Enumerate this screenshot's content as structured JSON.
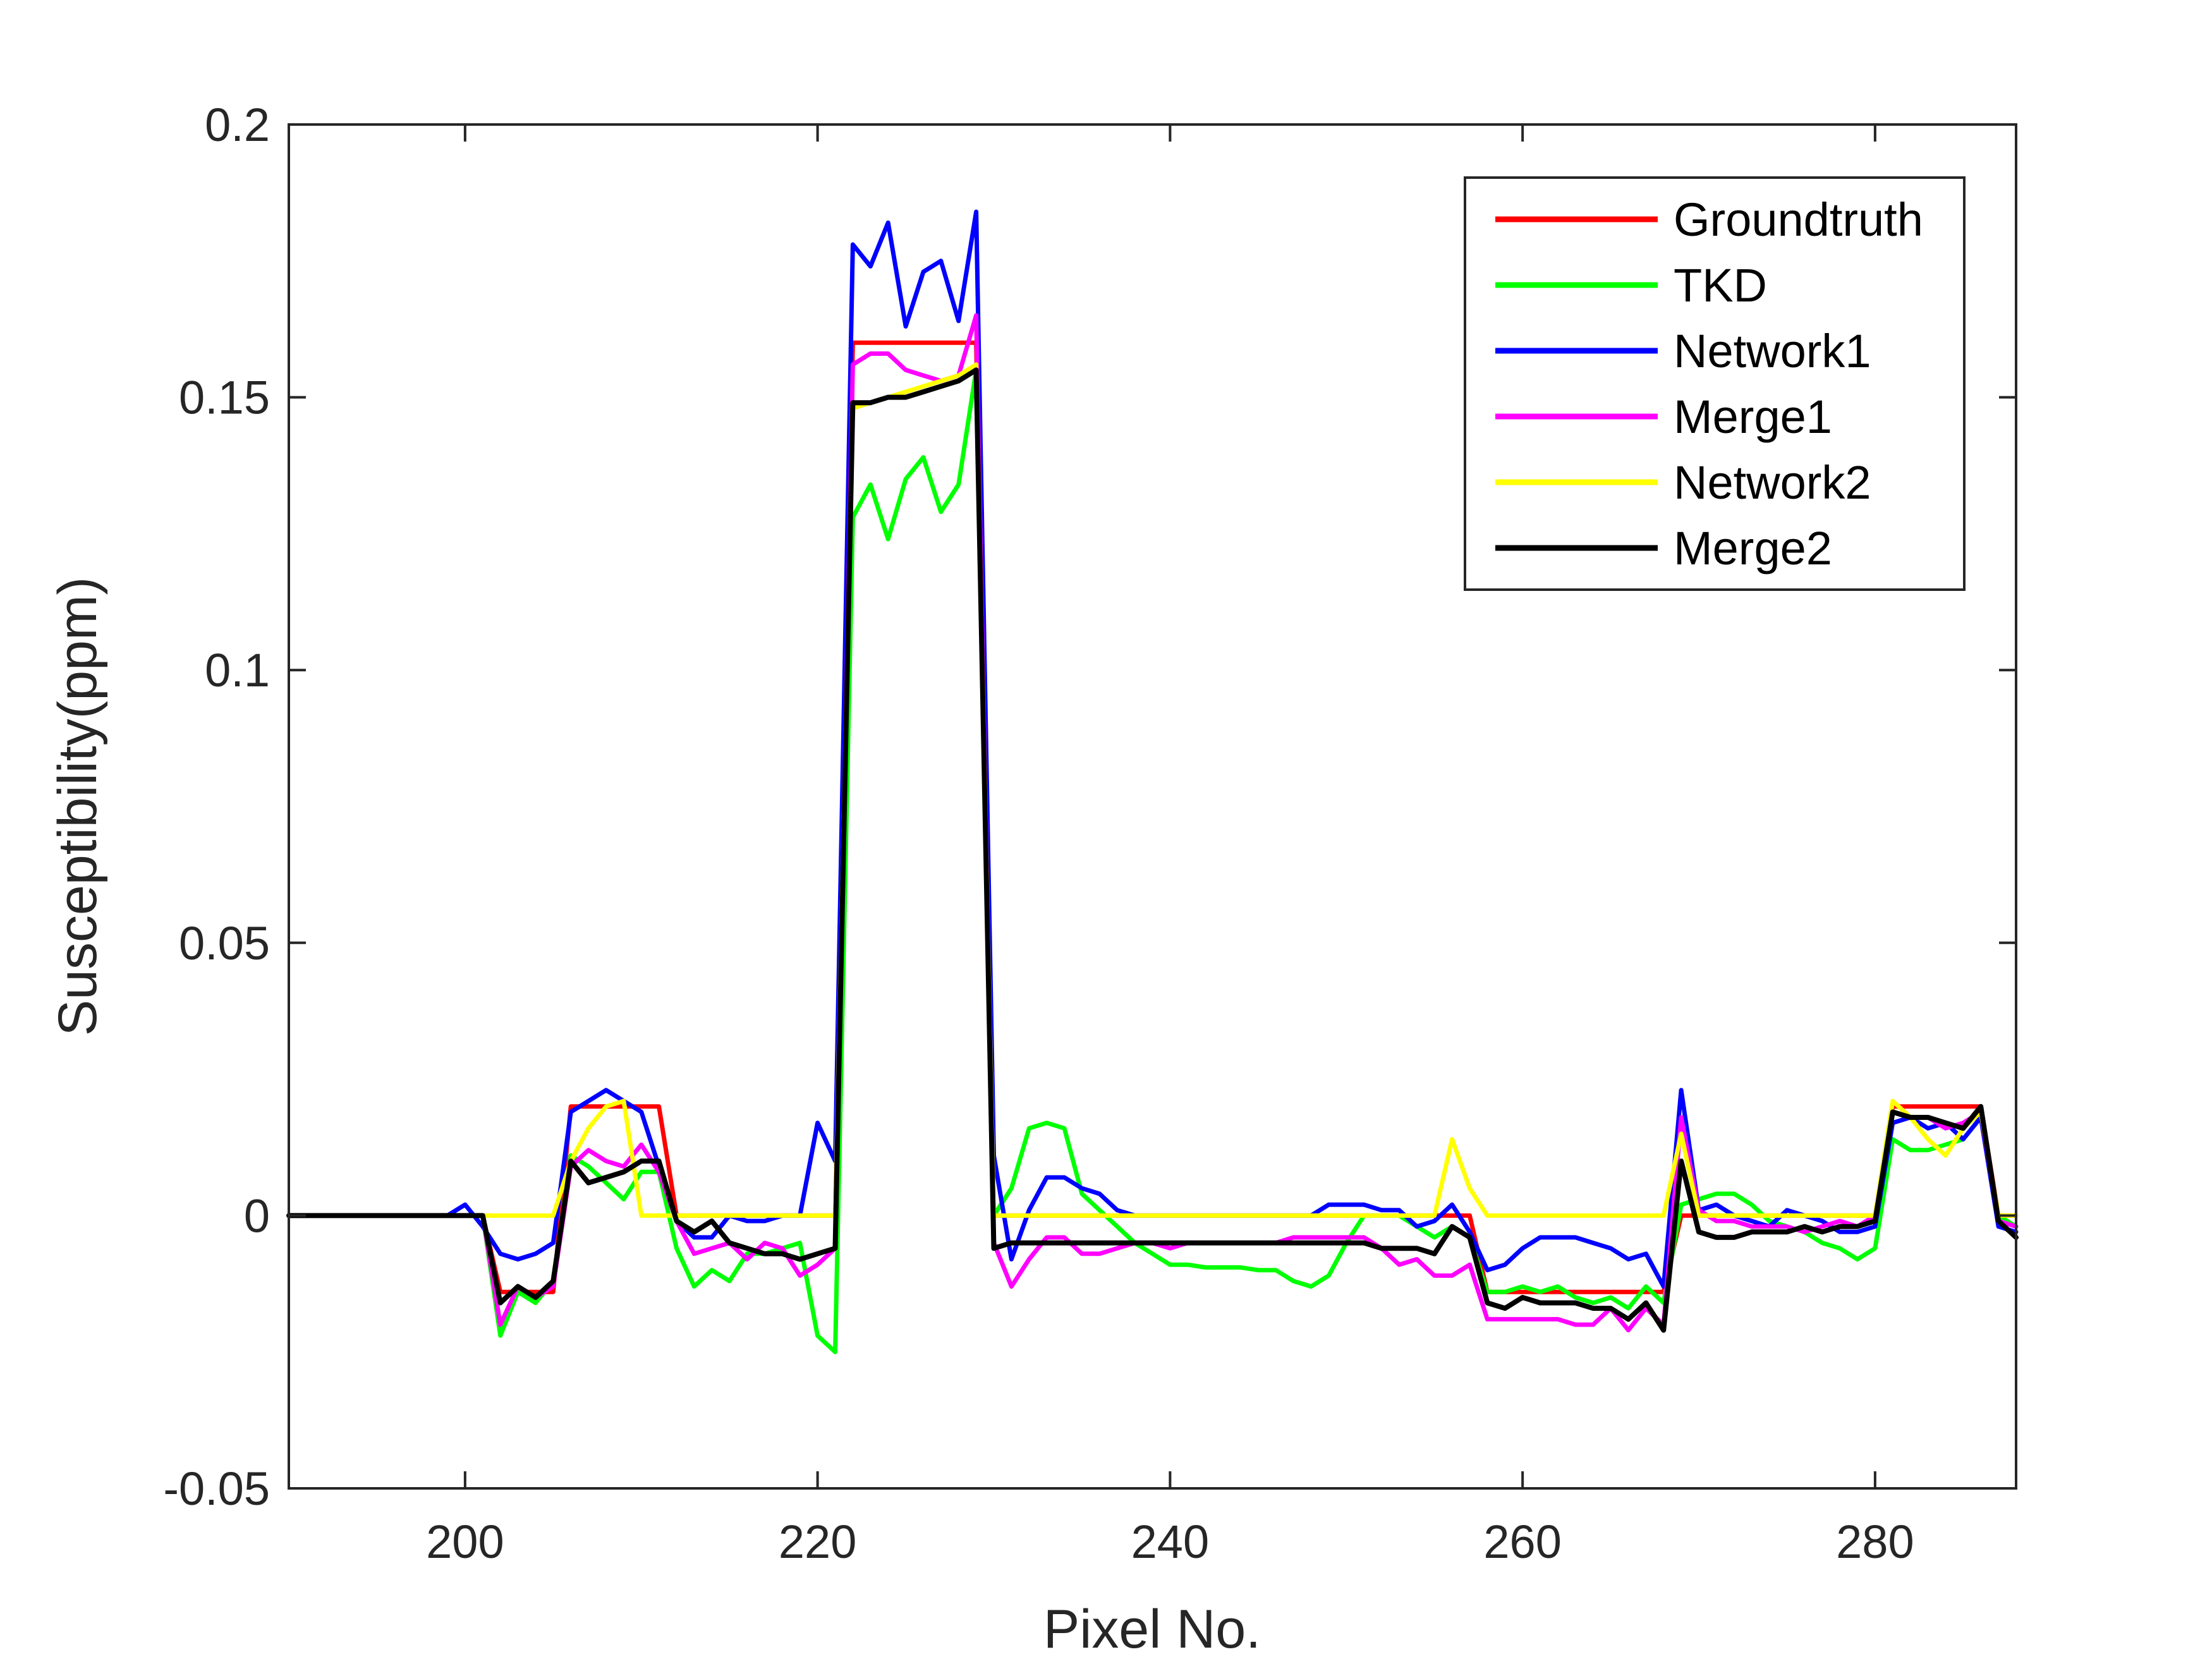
{
  "chart_data": {
    "type": "line",
    "title": "",
    "xlabel": "Pixel No.",
    "ylabel": "Susceptibility(ppm)",
    "xlim": [
      190,
      288
    ],
    "ylim": [
      -0.05,
      0.2
    ],
    "xticks": [
      200,
      220,
      240,
      260,
      280
    ],
    "xtick_labels": [
      "200",
      "220",
      "240",
      "260",
      "280"
    ],
    "yticks": [
      -0.05,
      0,
      0.05,
      0.1,
      0.15,
      0.2
    ],
    "ytick_labels": [
      "-0.05",
      "0",
      "0.05",
      "0.1",
      "0.15",
      "0.2"
    ],
    "grid": false,
    "box": true,
    "legend_position": "top-right",
    "x": [
      190,
      191,
      192,
      193,
      194,
      195,
      196,
      197,
      198,
      199,
      200,
      201,
      202,
      203,
      204,
      205,
      206,
      207,
      208,
      209,
      210,
      211,
      212,
      213,
      214,
      215,
      216,
      217,
      218,
      219,
      220,
      221,
      222,
      223,
      224,
      225,
      226,
      227,
      228,
      229,
      230,
      231,
      232,
      233,
      234,
      235,
      236,
      237,
      238,
      239,
      240,
      241,
      242,
      243,
      244,
      245,
      246,
      247,
      248,
      249,
      250,
      251,
      252,
      253,
      254,
      255,
      256,
      257,
      258,
      259,
      260,
      261,
      262,
      263,
      264,
      265,
      266,
      267,
      268,
      269,
      270,
      271,
      272,
      273,
      274,
      275,
      276,
      277,
      278,
      279,
      280,
      281,
      282,
      283,
      284,
      285,
      286,
      287,
      288
    ],
    "series": [
      {
        "name": "Groundtruth",
        "color": "#ff0000",
        "values": [
          0,
          0,
          0,
          0,
          0,
          0,
          0,
          0,
          0,
          0,
          0,
          0,
          -0.014,
          -0.014,
          -0.014,
          -0.014,
          0.02,
          0.02,
          0.02,
          0.02,
          0.02,
          0.02,
          0,
          0,
          0,
          0,
          0,
          0,
          0,
          0,
          0,
          0,
          0.16,
          0.16,
          0.16,
          0.16,
          0.16,
          0.16,
          0.16,
          0.16,
          0,
          0,
          0,
          0,
          0,
          0,
          0,
          0,
          0,
          0,
          0,
          0,
          0,
          0,
          0,
          0,
          0,
          0,
          0,
          0,
          0,
          0,
          0,
          0,
          0,
          0,
          0,
          0,
          -0.014,
          -0.014,
          -0.014,
          -0.014,
          -0.014,
          -0.014,
          -0.014,
          -0.014,
          -0.014,
          -0.014,
          -0.014,
          0,
          0,
          0,
          0,
          0,
          0,
          0,
          0,
          0,
          0,
          0,
          0,
          0.02,
          0.02,
          0.02,
          0.02,
          0.02,
          0.02,
          0,
          0
        ]
      },
      {
        "name": "TKD",
        "color": "#00ff00",
        "values": [
          0,
          0,
          0,
          0,
          0,
          0,
          0,
          0,
          0,
          0,
          0,
          0,
          -0.022,
          -0.014,
          -0.016,
          -0.012,
          0.011,
          0.009,
          0.006,
          0.003,
          0.008,
          0.008,
          -0.006,
          -0.013,
          -0.01,
          -0.012,
          -0.007,
          -0.007,
          -0.006,
          -0.005,
          -0.022,
          -0.025,
          0.128,
          0.134,
          0.124,
          0.135,
          0.139,
          0.129,
          0.134,
          0.155,
          0,
          0.005,
          0.016,
          0.017,
          0.016,
          0.004,
          0.001,
          -0.002,
          -0.005,
          -0.007,
          -0.009,
          -0.009,
          -0.0095,
          -0.0095,
          -0.0095,
          -0.01,
          -0.01,
          -0.012,
          -0.013,
          -0.011,
          -0.005,
          0,
          0,
          0,
          -0.002,
          -0.004,
          -0.002,
          -0.004,
          -0.014,
          -0.014,
          -0.013,
          -0.014,
          -0.013,
          -0.015,
          -0.016,
          -0.015,
          -0.017,
          -0.013,
          -0.016,
          0.002,
          0.003,
          0.004,
          0.004,
          0.002,
          -0.001,
          -0.002,
          -0.003,
          -0.005,
          -0.006,
          -0.008,
          -0.006,
          0.014,
          0.012,
          0.012,
          0.013,
          0.014,
          0.018,
          0,
          -0.002
        ]
      },
      {
        "name": "Network1",
        "color": "#0000ff",
        "values": [
          0,
          0,
          0,
          0,
          0,
          0,
          0,
          0,
          0,
          0,
          0.002,
          -0.002,
          -0.007,
          -0.008,
          -0.007,
          -0.005,
          0.019,
          0.021,
          0.023,
          0.021,
          0.019,
          0.009,
          -0.001,
          -0.004,
          -0.004,
          0,
          -0.001,
          -0.001,
          0,
          0,
          0.017,
          0.01,
          0.178,
          0.174,
          0.182,
          0.163,
          0.173,
          0.175,
          0.164,
          0.184,
          0.011,
          -0.008,
          0.001,
          0.007,
          0.007,
          0.005,
          0.004,
          0.001,
          0,
          0,
          0,
          0,
          0,
          0,
          0,
          0,
          0,
          0,
          0,
          0.002,
          0.002,
          0.002,
          0.001,
          0.001,
          -0.002,
          -0.001,
          0.002,
          -0.003,
          -0.01,
          -0.009,
          -0.006,
          -0.004,
          -0.004,
          -0.004,
          -0.005,
          -0.006,
          -0.008,
          -0.007,
          -0.013,
          0.023,
          0.001,
          0.002,
          0,
          -0.001,
          -0.002,
          0.001,
          0,
          -0.001,
          -0.003,
          -0.003,
          -0.002,
          0.017,
          0.018,
          0.016,
          0.017,
          0.014,
          0.018,
          -0.002,
          -0.003
        ]
      },
      {
        "name": "Merge1",
        "color": "#ff00ff",
        "values": [
          0,
          0,
          0,
          0,
          0,
          0,
          0,
          0,
          0,
          0,
          0,
          0,
          -0.02,
          -0.013,
          -0.015,
          -0.013,
          0.009,
          0.012,
          0.01,
          0.009,
          0.013,
          0.008,
          -0.001,
          -0.007,
          -0.006,
          -0.005,
          -0.008,
          -0.005,
          -0.006,
          -0.011,
          -0.009,
          -0.006,
          0.156,
          0.158,
          0.158,
          0.155,
          0.154,
          0.153,
          0.154,
          0.165,
          -0.005,
          -0.013,
          -0.008,
          -0.004,
          -0.004,
          -0.007,
          -0.007,
          -0.006,
          -0.005,
          -0.005,
          -0.006,
          -0.005,
          -0.005,
          -0.005,
          -0.005,
          -0.005,
          -0.005,
          -0.004,
          -0.004,
          -0.004,
          -0.004,
          -0.004,
          -0.006,
          -0.009,
          -0.008,
          -0.011,
          -0.011,
          -0.009,
          -0.019,
          -0.019,
          -0.019,
          -0.019,
          -0.019,
          -0.02,
          -0.02,
          -0.017,
          -0.021,
          -0.017,
          -0.02,
          0.018,
          0.001,
          -0.001,
          -0.001,
          -0.002,
          -0.002,
          -0.002,
          -0.003,
          -0.002,
          -0.001,
          -0.002,
          0,
          0.019,
          0.018,
          0.018,
          0.016,
          0.017,
          0.019,
          -0.001,
          -0.002
        ]
      },
      {
        "name": "Network2",
        "color": "#ffff00",
        "values": [
          0,
          0,
          0,
          0,
          0,
          0,
          0,
          0,
          0,
          0,
          0,
          0,
          0,
          0,
          0,
          0,
          0.01,
          0.016,
          0.02,
          0.021,
          0,
          0,
          0,
          0,
          0,
          0,
          0,
          0,
          0,
          0,
          0,
          0,
          0.148,
          0.149,
          0.15,
          0.151,
          0.152,
          0.153,
          0.154,
          0.156,
          0,
          0,
          0,
          0,
          0,
          0,
          0,
          0,
          0,
          0,
          0,
          0,
          0,
          0,
          0,
          0,
          0,
          0,
          0,
          0,
          0,
          0,
          0,
          0,
          0,
          0,
          0.014,
          0.005,
          0,
          0,
          0,
          0,
          0,
          0,
          0,
          0,
          0,
          0,
          0,
          0.015,
          0,
          0,
          0,
          0,
          0,
          0,
          0,
          0,
          0,
          0,
          0,
          0.021,
          0.018,
          0.014,
          0.011,
          0.016,
          0.019,
          0,
          0
        ]
      },
      {
        "name": "Merge2",
        "color": "#000000",
        "values": [
          0,
          0,
          0,
          0,
          0,
          0,
          0,
          0,
          0,
          0,
          0,
          0,
          -0.016,
          -0.013,
          -0.015,
          -0.012,
          0.01,
          0.006,
          0.007,
          0.008,
          0.01,
          0.01,
          -0.001,
          -0.003,
          -0.001,
          -0.005,
          -0.006,
          -0.007,
          -0.007,
          -0.008,
          -0.007,
          -0.006,
          0.149,
          0.149,
          0.15,
          0.15,
          0.151,
          0.152,
          0.153,
          0.155,
          -0.006,
          -0.005,
          -0.005,
          -0.005,
          -0.005,
          -0.005,
          -0.005,
          -0.005,
          -0.005,
          -0.005,
          -0.005,
          -0.005,
          -0.005,
          -0.005,
          -0.005,
          -0.005,
          -0.005,
          -0.005,
          -0.005,
          -0.005,
          -0.005,
          -0.005,
          -0.006,
          -0.006,
          -0.006,
          -0.007,
          -0.002,
          -0.004,
          -0.016,
          -0.017,
          -0.015,
          -0.016,
          -0.016,
          -0.016,
          -0.017,
          -0.017,
          -0.019,
          -0.016,
          -0.021,
          0.01,
          -0.003,
          -0.004,
          -0.004,
          -0.003,
          -0.003,
          -0.003,
          -0.002,
          -0.003,
          -0.002,
          -0.002,
          -0.001,
          0.019,
          0.018,
          0.018,
          0.017,
          0.016,
          0.02,
          -0.001,
          -0.004
        ]
      }
    ]
  }
}
